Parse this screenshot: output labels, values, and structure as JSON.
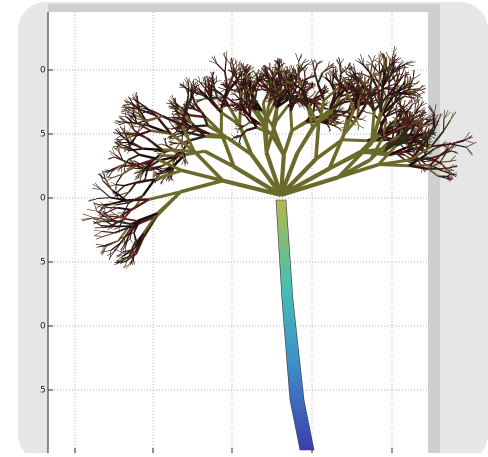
{
  "axis": {
    "tick_labels": [
      "0",
      "5",
      "0",
      "5",
      "0",
      "5"
    ]
  }
}
